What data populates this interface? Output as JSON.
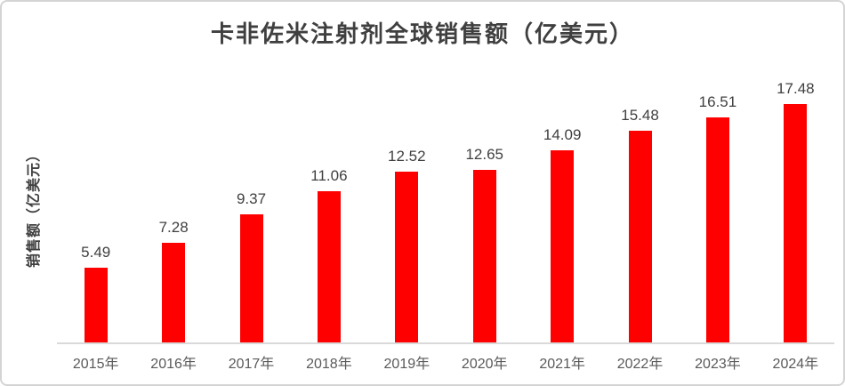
{
  "chart": {
    "title": "卡非佐米注射剂全球销售额（亿美元）",
    "ylabel": "销售额（亿美元）"
  },
  "chart_data": {
    "type": "bar",
    "title": "卡非佐米注射剂全球销售额（亿美元）",
    "xlabel": "",
    "ylabel": "销售额（亿美元）",
    "categories": [
      "2015年",
      "2016年",
      "2017年",
      "2018年",
      "2019年",
      "2020年",
      "2021年",
      "2022年",
      "2023年",
      "2024年"
    ],
    "values": [
      5.49,
      7.28,
      9.37,
      11.06,
      12.52,
      12.65,
      14.09,
      15.48,
      16.51,
      17.48
    ],
    "ylim": [
      0,
      20
    ],
    "grid": false,
    "legend_position": "none",
    "data_labels": true,
    "bar_color": "#ff0000",
    "value_label_color": "#404040",
    "tick_label_color": "#595959",
    "axis_line_color": "#d9d9d9",
    "title_color": "#3f3f3f"
  }
}
